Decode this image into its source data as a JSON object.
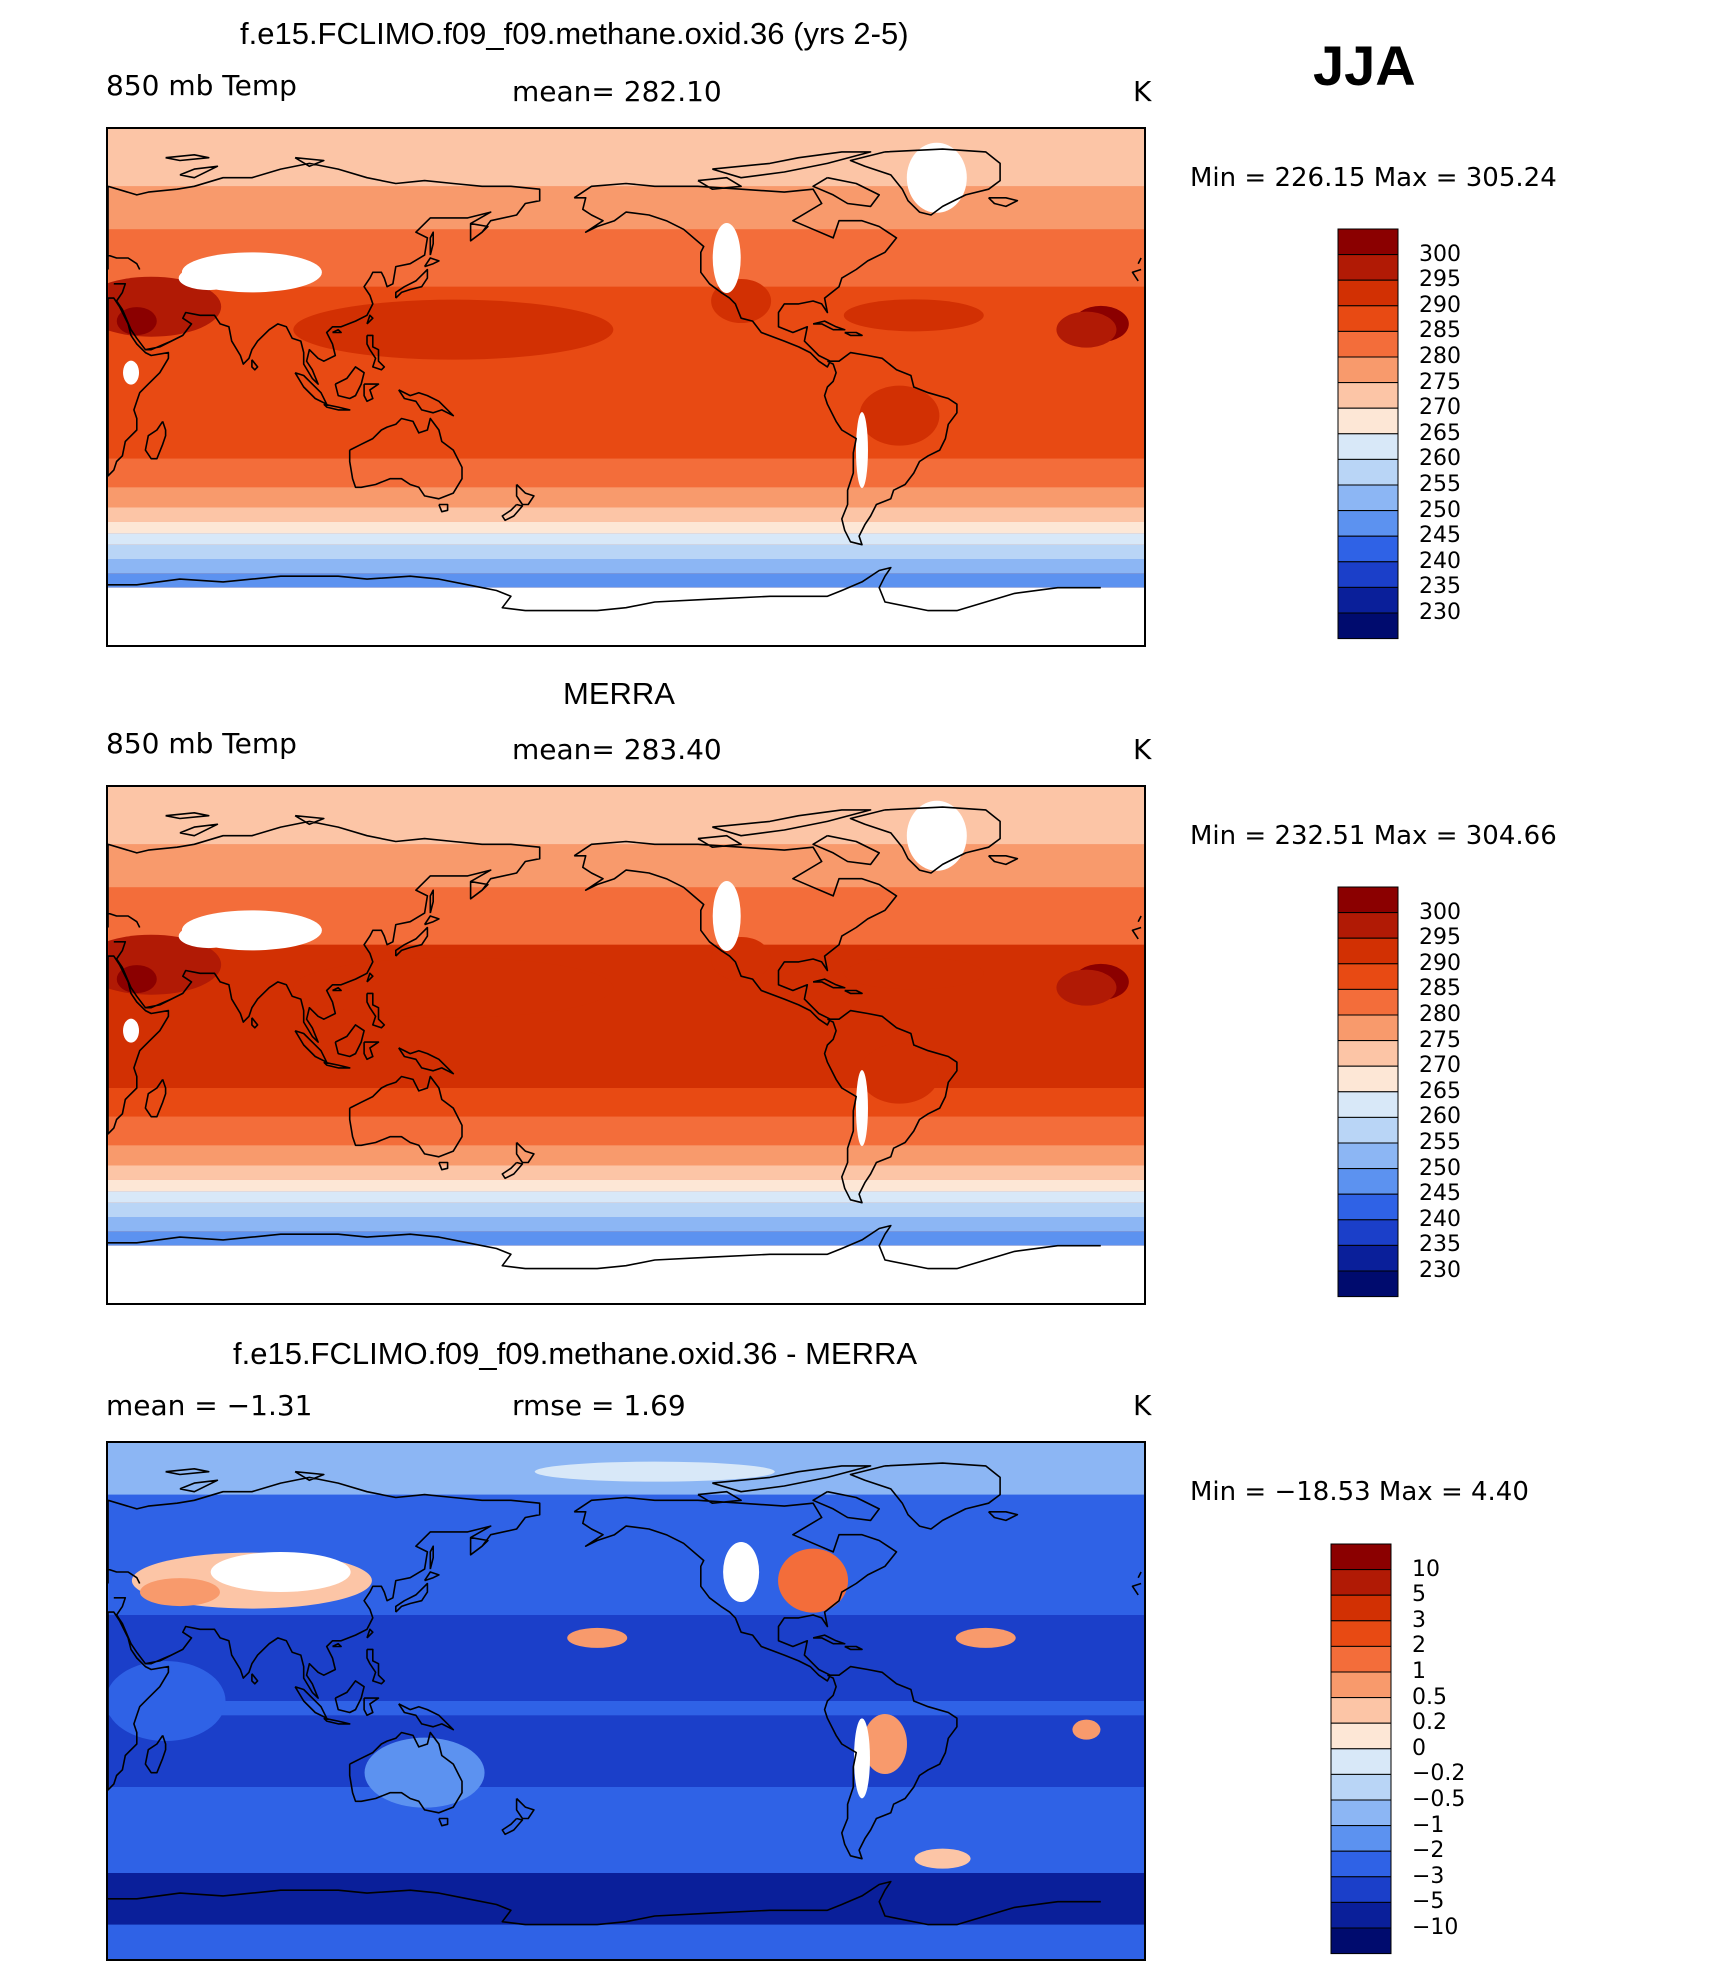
{
  "season": "JJA",
  "panels": [
    {
      "title": "f.e15.FCLIMO.f09_f09.methane.oxid.36 (yrs 2-5)",
      "left_label": "850 mb Temp",
      "center_label": "mean= 282.10",
      "units": "K",
      "minmax": "Min = 226.15 Max = 305.24",
      "variant": "model",
      "colorbar": {
        "labels": [
          "300",
          "295",
          "290",
          "285",
          "280",
          "275",
          "270",
          "265",
          "260",
          "255",
          "250",
          "245",
          "240",
          "235",
          "230"
        ],
        "colors": [
          "#8b0000",
          "#b11a05",
          "#d23003",
          "#e84a13",
          "#f36d3a",
          "#f89a6c",
          "#fcc5a6",
          "#fde7d6",
          "#d8e8f8",
          "#b9d5f6",
          "#8cb6f4",
          "#5c92f0",
          "#2f62e6",
          "#1b3fc9",
          "#0a1f9a",
          "#000b6e"
        ]
      }
    },
    {
      "title": "MERRA",
      "left_label": "850 mb Temp",
      "center_label": "mean= 283.40",
      "units": "K",
      "minmax": "Min = 232.51 Max = 304.66",
      "variant": "obs",
      "colorbar": {
        "labels": [
          "300",
          "295",
          "290",
          "285",
          "280",
          "275",
          "270",
          "265",
          "260",
          "255",
          "250",
          "245",
          "240",
          "235",
          "230"
        ],
        "colors": [
          "#8b0000",
          "#b11a05",
          "#d23003",
          "#e84a13",
          "#f36d3a",
          "#f89a6c",
          "#fcc5a6",
          "#fde7d6",
          "#d8e8f8",
          "#b9d5f6",
          "#8cb6f4",
          "#5c92f0",
          "#2f62e6",
          "#1b3fc9",
          "#0a1f9a",
          "#000b6e"
        ]
      }
    },
    {
      "title": "f.e15.FCLIMO.f09_f09.methane.oxid.36 - MERRA",
      "left_label": "mean =   −1.31",
      "center_label": "rmse =    1.69",
      "units": "K",
      "minmax": "Min = −18.53 Max =    4.40",
      "variant": "diff",
      "colorbar": {
        "labels": [
          "10",
          "5",
          "3",
          "2",
          "1",
          "0.5",
          "0.2",
          "0",
          "−0.2",
          "−0.5",
          "−1",
          "−2",
          "−3",
          "−5",
          "−10"
        ],
        "colors": [
          "#8b0000",
          "#b11a05",
          "#d23003",
          "#e84a13",
          "#f36d3a",
          "#f89a6c",
          "#fcc5a6",
          "#fde7d6",
          "#d8e8f8",
          "#b9d5f6",
          "#8cb6f4",
          "#5c92f0",
          "#2f62e6",
          "#1b3fc9",
          "#0a1f9a",
          "#000b6e"
        ]
      }
    }
  ]
}
